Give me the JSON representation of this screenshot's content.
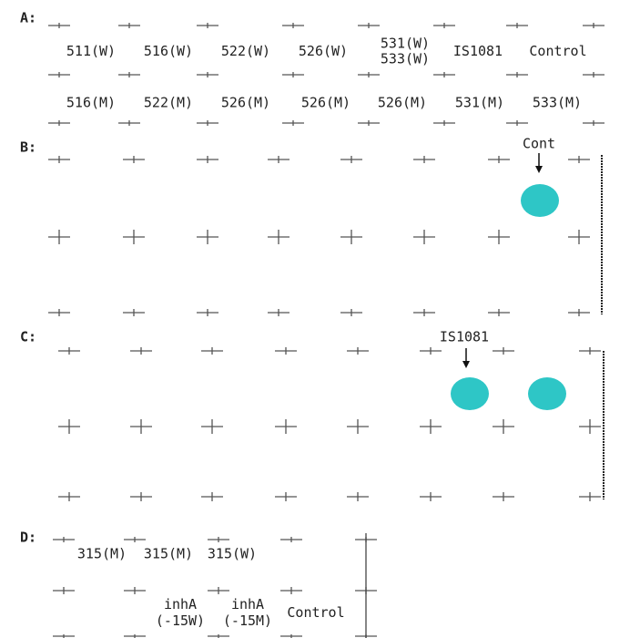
{
  "panel_a": {
    "label": "A:",
    "row_1": [
      [
        "511(W)"
      ],
      [
        "516(W)"
      ],
      [
        "522(W)"
      ],
      [
        "526(W)"
      ],
      [
        "531(W)",
        "533(W)"
      ],
      [
        "IS1081"
      ],
      [
        "Control"
      ]
    ],
    "row_2": [
      "516(M)",
      "522(M)",
      "526(M)",
      "526(M)",
      "526(M)",
      "531(M)",
      "533(M)"
    ]
  },
  "panel_b": {
    "label": "B:",
    "annotation": "Cont"
  },
  "panel_c": {
    "label": "C:",
    "annotation": "IS1081"
  },
  "panel_d": {
    "label": "D:",
    "row_1": [
      "315(M)",
      "315(M)",
      "315(W)"
    ],
    "row_2": [
      [
        "inhA",
        "(-15W)"
      ],
      [
        "inhA",
        "(-15M)"
      ],
      [
        "Control"
      ]
    ]
  }
}
